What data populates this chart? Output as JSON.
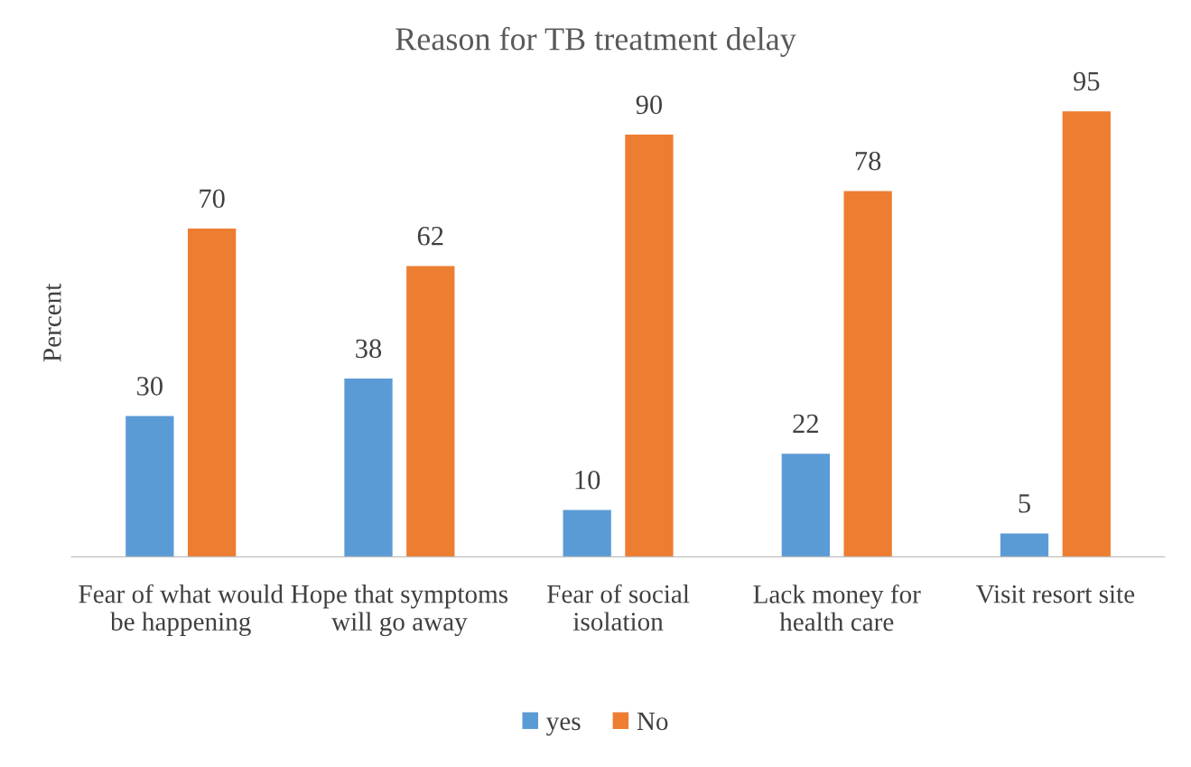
{
  "chart_data": {
    "type": "bar",
    "title": "Reason for TB treatment delay",
    "ylabel": "Percent",
    "categories": [
      "Fear of what would be happening",
      "Hope that symptoms will go away",
      "Fear of social isolation",
      "Lack money for health care",
      "Visit resort site"
    ],
    "series": [
      {
        "name": "yes",
        "color": "#5b9bd5",
        "values": [
          30,
          38,
          10,
          22,
          5
        ]
      },
      {
        "name": "No",
        "color": "#ed7d31",
        "values": [
          70,
          62,
          90,
          78,
          95
        ]
      }
    ],
    "data_labels": true,
    "legend": "bottom",
    "grid": false,
    "tick_labels": "x"
  }
}
